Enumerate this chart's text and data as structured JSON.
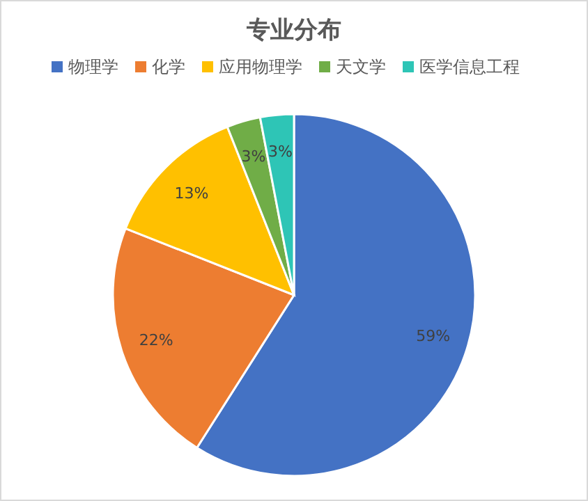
{
  "chart_data": {
    "type": "pie",
    "title": "专业分布",
    "categories": [
      "物理学",
      "化学",
      "应用物理学",
      "天文学",
      "医学信息工程"
    ],
    "values": [
      59,
      22,
      13,
      3,
      3
    ],
    "colors": [
      "#4472c4",
      "#ed7d31",
      "#ffc000",
      "#70ad47",
      "#2ec5b6"
    ],
    "value_labels": [
      "59%",
      "22%",
      "13%",
      "3%",
      "3%"
    ],
    "legend": "top"
  }
}
